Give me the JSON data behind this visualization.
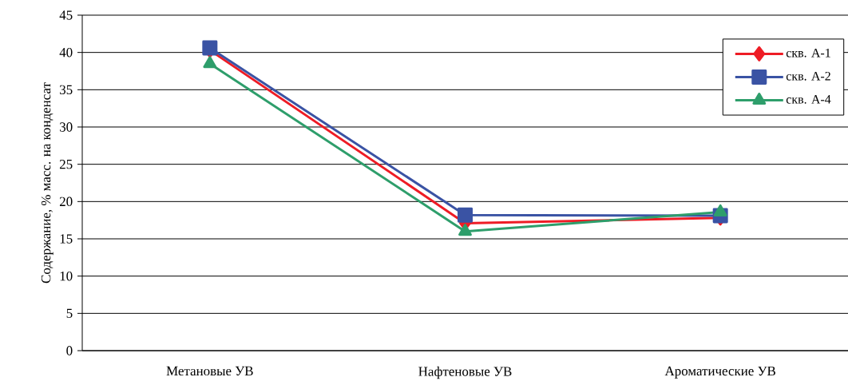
{
  "chart_data": {
    "type": "line",
    "ylabel": "Содержание, % масс. на конденсат",
    "categories": [
      "Метановые УВ",
      "Нафтеновые УВ",
      "Ароматические УВ"
    ],
    "series": [
      {
        "name": "скв. А-1",
        "color": "#ee1c25",
        "marker": "diamond",
        "values": [
          40.3,
          17.1,
          17.8
        ]
      },
      {
        "name": "скв. А-2",
        "color": "#3a53a4",
        "marker": "square",
        "values": [
          40.6,
          18.2,
          18.1
        ]
      },
      {
        "name": "скв. А-4",
        "color": "#2e9e6b",
        "marker": "triangle",
        "values": [
          38.5,
          16.0,
          18.6
        ]
      }
    ],
    "ylim": [
      0,
      45
    ],
    "yticks": [
      0,
      5,
      10,
      15,
      20,
      25,
      30,
      35,
      40,
      45
    ],
    "grid": "y",
    "legend": "top right",
    "line_style": "solid"
  }
}
